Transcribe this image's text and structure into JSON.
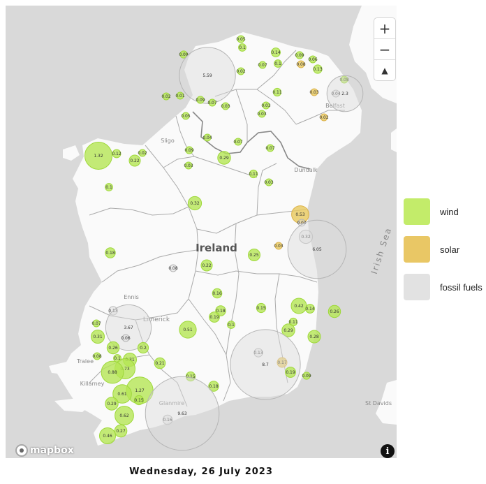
{
  "map": {
    "place_labels": {
      "country": "Ireland",
      "sea": "Irish Sea",
      "sligo": "Sligo",
      "belfast": "Belfast",
      "dundalk": "Dundalk",
      "ennis": "Ennis",
      "limerick": "Limerick",
      "tralee": "Tralee",
      "killarney": "Killarney",
      "glanmire": "Glanmire",
      "st_davids": "St Davids"
    },
    "attribution": "mapbox",
    "info_symbol": "i",
    "colors": {
      "water": "#d9d9d9",
      "land": "#fafafa",
      "border": "#aaaaaa",
      "wind": "#b5e655",
      "solar": "#e8c95d",
      "fossil": "#dcdcdc"
    }
  },
  "controls": {
    "zoom_in": "+",
    "zoom_out": "−",
    "compass": "▲"
  },
  "legend": {
    "items": [
      {
        "label": "wind",
        "color": "#c3ec6a"
      },
      {
        "label": "solar",
        "color": "#e9c765"
      },
      {
        "label": "fossil fuels",
        "color": "#e2e2e2"
      }
    ]
  },
  "date": "Wednesday, 26 July 2023",
  "generation_sites": [
    {
      "type": "wind",
      "value": "0.05"
    },
    {
      "type": "wind",
      "value": "0.1"
    },
    {
      "type": "wind",
      "value": "0.09"
    },
    {
      "type": "wind",
      "value": "0.14"
    },
    {
      "type": "wind",
      "value": "0.1"
    },
    {
      "type": "solar",
      "value": "0.08"
    },
    {
      "type": "wind",
      "value": "0.09"
    },
    {
      "type": "wind",
      "value": "0.06"
    },
    {
      "type": "wind",
      "value": "0.13"
    },
    {
      "type": "wind",
      "value": "0.02"
    },
    {
      "type": "wind",
      "value": "0.07"
    },
    {
      "type": "fossil",
      "value": "5.59"
    },
    {
      "type": "wind",
      "value": "0.08"
    },
    {
      "type": "wind",
      "value": "0.02"
    },
    {
      "type": "wind",
      "value": "0.01"
    },
    {
      "type": "wind",
      "value": "0.09"
    },
    {
      "type": "wind",
      "value": "0.07"
    },
    {
      "type": "wind",
      "value": "0.03"
    },
    {
      "type": "wind",
      "value": "0.11"
    },
    {
      "type": "solar",
      "value": "0.03"
    },
    {
      "type": "fossil",
      "value": "0.04"
    },
    {
      "type": "fossil",
      "value": "2.3"
    },
    {
      "type": "wind",
      "value": "0.03"
    },
    {
      "type": "wind",
      "value": "0.05"
    },
    {
      "type": "wind",
      "value": "0.03"
    },
    {
      "type": "solar",
      "value": "0.02"
    },
    {
      "type": "wind",
      "value": "0.04"
    },
    {
      "type": "wind",
      "value": "0.07"
    },
    {
      "type": "wind",
      "value": "1.32"
    },
    {
      "type": "wind",
      "value": "0.12"
    },
    {
      "type": "wind",
      "value": "0.02"
    },
    {
      "type": "wind",
      "value": "0.22"
    },
    {
      "type": "wind",
      "value": "0.09"
    },
    {
      "type": "wind",
      "value": "0.03"
    },
    {
      "type": "wind",
      "value": "0.29"
    },
    {
      "type": "wind",
      "value": "0.07"
    },
    {
      "type": "wind",
      "value": "0.11"
    },
    {
      "type": "wind",
      "value": "0.03"
    },
    {
      "type": "wind",
      "value": "0.1"
    },
    {
      "type": "wind",
      "value": "0.32"
    },
    {
      "type": "solar",
      "value": "0.53"
    },
    {
      "type": "fossil",
      "value": "0.03"
    },
    {
      "type": "fossil",
      "value": "0.32"
    },
    {
      "type": "solar",
      "value": "0.03"
    },
    {
      "type": "fossil",
      "value": "6.05"
    },
    {
      "type": "wind",
      "value": "0.18"
    },
    {
      "type": "wind",
      "value": "0.25"
    },
    {
      "type": "wind",
      "value": "0.22"
    },
    {
      "type": "fossil",
      "value": "0.08"
    },
    {
      "type": "wind",
      "value": "0.16"
    },
    {
      "type": "wind",
      "value": "0.15"
    },
    {
      "type": "wind",
      "value": "0.42"
    },
    {
      "type": "wind",
      "value": "0.14"
    },
    {
      "type": "wind",
      "value": "0.26"
    },
    {
      "type": "wind",
      "value": "0.18"
    },
    {
      "type": "fossil",
      "value": "0.13"
    },
    {
      "type": "wind",
      "value": "0.07"
    },
    {
      "type": "fossil",
      "value": "3.67"
    },
    {
      "type": "wind",
      "value": "0.51"
    },
    {
      "type": "wind",
      "value": "0.19"
    },
    {
      "type": "wind",
      "value": "0.1"
    },
    {
      "type": "wind",
      "value": "0.11"
    },
    {
      "type": "wind",
      "value": "0.29"
    },
    {
      "type": "wind",
      "value": "0.28"
    },
    {
      "type": "wind",
      "value": "0.31"
    },
    {
      "type": "wind",
      "value": "0.26"
    },
    {
      "type": "fossil",
      "value": "0.06"
    },
    {
      "type": "wind",
      "value": "0.2"
    },
    {
      "type": "wind",
      "value": "0.08"
    },
    {
      "type": "wind",
      "value": "0.1"
    },
    {
      "type": "wind",
      "value": "0.31"
    },
    {
      "type": "wind",
      "value": "0.73"
    },
    {
      "type": "wind",
      "value": "0.88"
    },
    {
      "type": "wind",
      "value": "0.21"
    },
    {
      "type": "fossil",
      "value": "0.13"
    },
    {
      "type": "solar",
      "value": "0.17"
    },
    {
      "type": "fossil",
      "value": "8.7"
    },
    {
      "type": "wind",
      "value": "0.19"
    },
    {
      "type": "wind",
      "value": "0.09"
    },
    {
      "type": "wind",
      "value": "0.15"
    },
    {
      "type": "wind",
      "value": "0.18"
    },
    {
      "type": "wind",
      "value": "1.27"
    },
    {
      "type": "wind",
      "value": "0.61"
    },
    {
      "type": "wind",
      "value": "0.15"
    },
    {
      "type": "wind",
      "value": "0.29"
    },
    {
      "type": "wind",
      "value": "0.62"
    },
    {
      "type": "fossil",
      "value": "0.16"
    },
    {
      "type": "fossil",
      "value": "9.63"
    },
    {
      "type": "wind",
      "value": "0.27"
    },
    {
      "type": "wind",
      "value": "0.46"
    }
  ]
}
